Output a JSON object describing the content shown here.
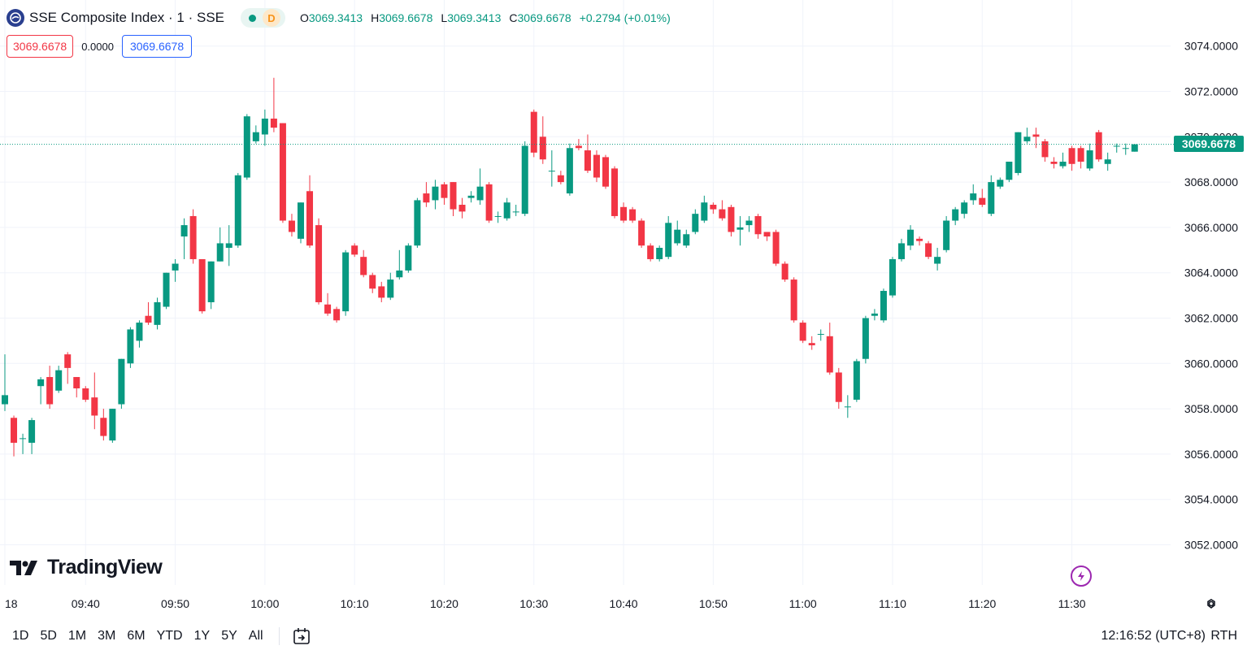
{
  "header": {
    "symbol_title": "SSE Composite Index · 1 · SSE",
    "badge": "D",
    "ohlc": [
      {
        "key": "O",
        "value": "3069.3413"
      },
      {
        "key": "H",
        "value": "3069.6678"
      },
      {
        "key": "L",
        "value": "3069.3413"
      },
      {
        "key": "C",
        "value": "3069.6678"
      }
    ],
    "change": "+0.2794 (+0.01%)"
  },
  "values_row": {
    "sell": "3069.6678",
    "spread": "0.0000",
    "buy": "3069.6678"
  },
  "last_price_label": "3069.6678",
  "logo_text": "TradingView",
  "range_buttons": [
    "1D",
    "5D",
    "1M",
    "3M",
    "6M",
    "YTD",
    "1Y",
    "5Y",
    "All"
  ],
  "clock": "12:16:52 (UTC+8)",
  "session": "RTH",
  "icons": {
    "symbol": "sse-logo-icon",
    "bolt": "lightning-icon",
    "settings": "gear-icon",
    "goto_date": "calendar-goto-icon"
  },
  "colors": {
    "up": "#089981",
    "down": "#f23645",
    "grid": "#f0f3fa"
  },
  "chart_data": {
    "type": "candlestick",
    "interval": "1 minute",
    "y_ticks": [
      "3074.0000",
      "3072.0000",
      "3070.0000",
      "3068.0000",
      "3066.0000",
      "3064.0000",
      "3062.0000",
      "3060.0000",
      "3058.0000",
      "3056.0000",
      "3054.0000",
      "3052.0000"
    ],
    "ylim": [
      3051.0,
      3075.8
    ],
    "x_ticks": [
      {
        "label": "18",
        "t": "09:31"
      },
      {
        "label": "09:40",
        "t": "09:40"
      },
      {
        "label": "09:50",
        "t": "09:50"
      },
      {
        "label": "10:00",
        "t": "10:00"
      },
      {
        "label": "10:10",
        "t": "10:10"
      },
      {
        "label": "10:20",
        "t": "10:20"
      },
      {
        "label": "10:30",
        "t": "10:30"
      },
      {
        "label": "10:40",
        "t": "10:40"
      },
      {
        "label": "10:50",
        "t": "10:50"
      },
      {
        "label": "11:00",
        "t": "11:00"
      },
      {
        "label": "11:10",
        "t": "11:10"
      },
      {
        "label": "11:20",
        "t": "11:20"
      },
      {
        "label": "11:30",
        "t": "11:30"
      }
    ],
    "time_range": [
      "09:30",
      "11:30"
    ],
    "last_price": 3069.6678,
    "candles": [
      [
        3058.2,
        3058.6,
        3060.4,
        3057.9
      ],
      [
        3057.6,
        3056.5,
        3057.7,
        3055.9
      ],
      [
        3056.7,
        3056.7,
        3056.9,
        3056.0
      ],
      [
        3056.5,
        3057.5,
        3057.6,
        3056.0
      ],
      [
        3059.0,
        3059.3,
        3059.4,
        3058.2
      ],
      [
        3059.4,
        3058.2,
        3059.9,
        3058.0
      ],
      [
        3058.8,
        3059.7,
        3059.9,
        3058.7
      ],
      [
        3060.4,
        3059.8,
        3060.5,
        3059.1
      ],
      [
        3059.4,
        3058.9,
        3059.4,
        3058.5
      ],
      [
        3058.9,
        3058.4,
        3059.0,
        3058.3
      ],
      [
        3058.5,
        3057.7,
        3059.6,
        3057.1
      ],
      [
        3057.6,
        3056.8,
        3058.0,
        3056.6
      ],
      [
        3056.6,
        3058.0,
        3058.0,
        3056.5
      ],
      [
        3058.2,
        3060.2,
        3060.2,
        3058.0
      ],
      [
        3060.0,
        3061.5,
        3061.6,
        3059.8
      ],
      [
        3061.0,
        3061.8,
        3061.9,
        3060.7
      ],
      [
        3062.1,
        3061.8,
        3062.7,
        3061.7
      ],
      [
        3061.7,
        3062.7,
        3062.9,
        3061.5
      ],
      [
        3062.5,
        3064.0,
        3064.0,
        3062.4
      ],
      [
        3064.1,
        3064.4,
        3064.6,
        3063.6
      ],
      [
        3065.6,
        3066.1,
        3066.4,
        3064.6
      ],
      [
        3066.5,
        3064.6,
        3066.8,
        3064.4
      ],
      [
        3064.6,
        3062.3,
        3064.6,
        3062.2
      ],
      [
        3062.7,
        3064.5,
        3064.5,
        3062.4
      ],
      [
        3064.5,
        3065.3,
        3066.0,
        3064.5
      ],
      [
        3065.1,
        3065.3,
        3066.1,
        3064.3
      ],
      [
        3065.2,
        3068.3,
        3068.4,
        3065.1
      ],
      [
        3068.2,
        3070.9,
        3071.0,
        3068.1
      ],
      [
        3069.8,
        3070.2,
        3070.5,
        3069.7
      ],
      [
        3070.1,
        3070.8,
        3071.2,
        3069.6
      ],
      [
        3070.8,
        3070.4,
        3072.6,
        3070.2
      ],
      [
        3070.6,
        3066.3,
        3070.6,
        3066.2
      ],
      [
        3066.3,
        3065.8,
        3066.6,
        3065.6
      ],
      [
        3065.5,
        3067.1,
        3067.1,
        3065.3
      ],
      [
        3067.6,
        3065.2,
        3068.3,
        3065.1
      ],
      [
        3066.1,
        3062.7,
        3066.4,
        3062.6
      ],
      [
        3062.6,
        3062.2,
        3063.1,
        3062.1
      ],
      [
        3062.4,
        3061.9,
        3062.5,
        3061.8
      ],
      [
        3062.3,
        3064.9,
        3065.0,
        3062.1
      ],
      [
        3065.2,
        3064.8,
        3065.3,
        3064.7
      ],
      [
        3064.7,
        3063.9,
        3065.0,
        3063.8
      ],
      [
        3063.9,
        3063.3,
        3064.0,
        3063.1
      ],
      [
        3063.4,
        3062.9,
        3063.6,
        3062.7
      ],
      [
        3062.9,
        3063.7,
        3064.0,
        3062.8
      ],
      [
        3063.8,
        3064.1,
        3065.0,
        3063.7
      ],
      [
        3064.1,
        3065.2,
        3065.3,
        3064.0
      ],
      [
        3065.2,
        3067.2,
        3067.3,
        3065.1
      ],
      [
        3067.5,
        3067.1,
        3068.0,
        3066.9
      ],
      [
        3067.2,
        3067.8,
        3068.1,
        3066.8
      ],
      [
        3067.9,
        3067.3,
        3068.0,
        3067.0
      ],
      [
        3068.0,
        3066.8,
        3068.0,
        3066.5
      ],
      [
        3067.0,
        3066.7,
        3067.3,
        3066.4
      ],
      [
        3067.3,
        3067.4,
        3067.6,
        3067.1
      ],
      [
        3067.2,
        3067.8,
        3068.6,
        3067.0
      ],
      [
        3067.9,
        3066.3,
        3068.0,
        3066.2
      ],
      [
        3066.5,
        3066.5,
        3066.7,
        3066.2
      ],
      [
        3066.4,
        3067.1,
        3067.3,
        3066.3
      ],
      [
        3066.7,
        3066.7,
        3067.0,
        3066.5
      ],
      [
        3066.6,
        3069.6,
        3069.8,
        3066.5
      ],
      [
        3071.1,
        3069.3,
        3071.2,
        3069.1
      ],
      [
        3070.0,
        3069.0,
        3070.9,
        3068.8
      ],
      [
        3068.5,
        3068.5,
        3069.4,
        3067.8
      ],
      [
        3068.3,
        3068.0,
        3068.5,
        3067.9
      ],
      [
        3067.5,
        3069.5,
        3069.7,
        3067.4
      ],
      [
        3069.6,
        3069.5,
        3069.9,
        3069.4
      ],
      [
        3069.4,
        3068.5,
        3070.1,
        3068.4
      ],
      [
        3069.2,
        3068.2,
        3069.4,
        3068.0
      ],
      [
        3069.1,
        3067.8,
        3069.2,
        3067.7
      ],
      [
        3068.6,
        3066.5,
        3068.7,
        3066.4
      ],
      [
        3066.9,
        3066.3,
        3067.1,
        3066.2
      ],
      [
        3066.8,
        3066.3,
        3066.9,
        3066.2
      ],
      [
        3066.3,
        3065.2,
        3066.4,
        3065.1
      ],
      [
        3065.2,
        3064.6,
        3065.3,
        3064.5
      ],
      [
        3064.6,
        3065.1,
        3065.2,
        3064.5
      ],
      [
        3064.7,
        3066.2,
        3066.5,
        3064.6
      ],
      [
        3065.3,
        3065.9,
        3066.3,
        3065.2
      ],
      [
        3065.2,
        3065.7,
        3065.9,
        3065.1
      ],
      [
        3065.8,
        3066.6,
        3066.8,
        3065.7
      ],
      [
        3066.3,
        3067.1,
        3067.4,
        3066.2
      ],
      [
        3067.0,
        3066.8,
        3067.1,
        3066.6
      ],
      [
        3066.8,
        3066.4,
        3067.2,
        3066.3
      ],
      [
        3066.9,
        3065.8,
        3067.0,
        3065.6
      ],
      [
        3065.9,
        3066.0,
        3066.5,
        3065.2
      ],
      [
        3066.1,
        3066.3,
        3066.5,
        3065.8
      ],
      [
        3066.5,
        3065.7,
        3066.6,
        3065.5
      ],
      [
        3065.8,
        3065.6,
        3065.8,
        3065.4
      ],
      [
        3065.8,
        3064.4,
        3065.9,
        3064.3
      ],
      [
        3064.4,
        3063.7,
        3064.5,
        3063.6
      ],
      [
        3063.7,
        3061.9,
        3063.8,
        3061.8
      ],
      [
        3061.8,
        3061.0,
        3061.9,
        3060.9
      ],
      [
        3060.9,
        3060.8,
        3061.2,
        3060.6
      ],
      [
        3061.3,
        3061.3,
        3061.5,
        3061.0
      ],
      [
        3061.2,
        3059.6,
        3061.8,
        3059.5
      ],
      [
        3059.6,
        3058.3,
        3059.8,
        3058.0
      ],
      [
        3058.1,
        3058.1,
        3058.6,
        3057.6
      ],
      [
        3058.4,
        3060.1,
        3060.2,
        3058.3
      ],
      [
        3060.2,
        3062.0,
        3062.1,
        3060.0
      ],
      [
        3062.1,
        3062.2,
        3062.4,
        3061.9
      ],
      [
        3061.9,
        3063.2,
        3063.3,
        3061.8
      ],
      [
        3063.0,
        3064.6,
        3064.7,
        3062.9
      ],
      [
        3064.6,
        3065.3,
        3065.5,
        3064.5
      ],
      [
        3065.2,
        3065.9,
        3066.1,
        3065.0
      ],
      [
        3065.5,
        3065.4,
        3065.6,
        3065.2
      ],
      [
        3065.3,
        3064.7,
        3065.4,
        3064.6
      ],
      [
        3064.4,
        3064.7,
        3065.1,
        3064.1
      ],
      [
        3065.0,
        3066.3,
        3066.5,
        3064.9
      ],
      [
        3066.3,
        3066.8,
        3066.9,
        3066.1
      ],
      [
        3066.6,
        3067.1,
        3067.2,
        3066.4
      ],
      [
        3067.2,
        3067.5,
        3067.9,
        3067.0
      ],
      [
        3067.3,
        3067.0,
        3067.7,
        3066.9
      ],
      [
        3066.6,
        3068.0,
        3068.3,
        3066.5
      ],
      [
        3067.8,
        3068.1,
        3068.2,
        3067.7
      ],
      [
        3068.1,
        3068.9,
        3068.9,
        3068.0
      ],
      [
        3068.4,
        3070.2,
        3070.2,
        3068.3
      ],
      [
        3069.8,
        3070.0,
        3070.4,
        3069.7
      ],
      [
        3070.1,
        3070.0,
        3070.4,
        3069.5
      ],
      [
        3069.8,
        3069.1,
        3069.9,
        3068.9
      ],
      [
        3068.9,
        3068.8,
        3069.1,
        3068.6
      ],
      [
        3068.7,
        3068.9,
        3069.3,
        3068.6
      ],
      [
        3069.5,
        3068.8,
        3069.6,
        3068.5
      ],
      [
        3069.5,
        3068.9,
        3069.6,
        3068.6
      ],
      [
        3068.6,
        3069.4,
        3069.7,
        3068.5
      ],
      [
        3070.2,
        3069.0,
        3070.3,
        3068.9
      ],
      [
        3068.8,
        3069.0,
        3069.3,
        3068.5
      ],
      [
        3069.6,
        3069.6,
        3069.7,
        3069.3
      ],
      [
        3069.5,
        3069.5,
        3069.7,
        3069.2
      ],
      [
        3069.3413,
        3069.6678,
        3069.6678,
        3069.3413
      ]
    ],
    "candle_format": "[open, close, high, low]",
    "skip_minutes": [
      0
    ]
  }
}
